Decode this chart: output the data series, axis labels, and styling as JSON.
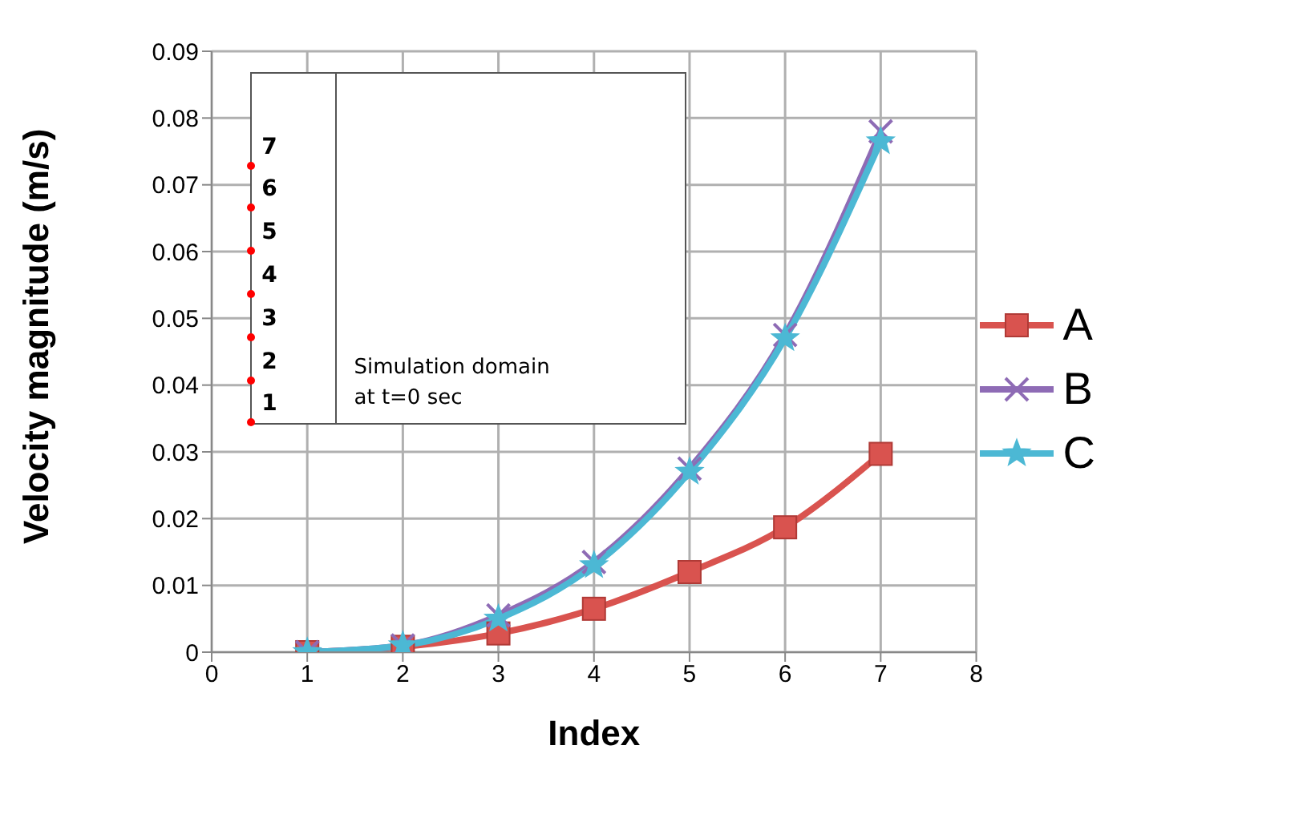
{
  "chart_data": {
    "type": "line",
    "xlabel": "Index",
    "ylabel": "Velocity magnitude (m/s)",
    "x": [
      1,
      2,
      3,
      4,
      5,
      6,
      7
    ],
    "series": [
      {
        "name": "A",
        "color": "#d9534f",
        "marker": "square",
        "values": [
          0,
          0.0008,
          0.0028,
          0.0065,
          0.012,
          0.0187,
          0.0297
        ]
      },
      {
        "name": "B",
        "color": "#8e6bb5",
        "marker": "cross",
        "values": [
          0,
          0.001,
          0.0055,
          0.0135,
          0.0275,
          0.0475,
          0.078
        ]
      },
      {
        "name": "C",
        "color": "#4cb8d4",
        "marker": "star",
        "values": [
          0,
          0.001,
          0.005,
          0.013,
          0.027,
          0.047,
          0.0765
        ]
      }
    ],
    "xlim": [
      0,
      8
    ],
    "xticks": [
      0,
      1,
      2,
      3,
      4,
      5,
      6,
      7,
      8
    ],
    "ylim": [
      0,
      0.09
    ],
    "yticks": [
      0,
      0.01,
      0.02,
      0.03,
      0.04,
      0.05,
      0.06,
      0.07,
      0.08,
      0.09
    ],
    "grid": true,
    "legend": "right",
    "line_style": "solid",
    "annotations": [
      "Simulation domain",
      "at t=0 sec",
      "1",
      "2",
      "3",
      "4",
      "5",
      "6",
      "7"
    ]
  }
}
